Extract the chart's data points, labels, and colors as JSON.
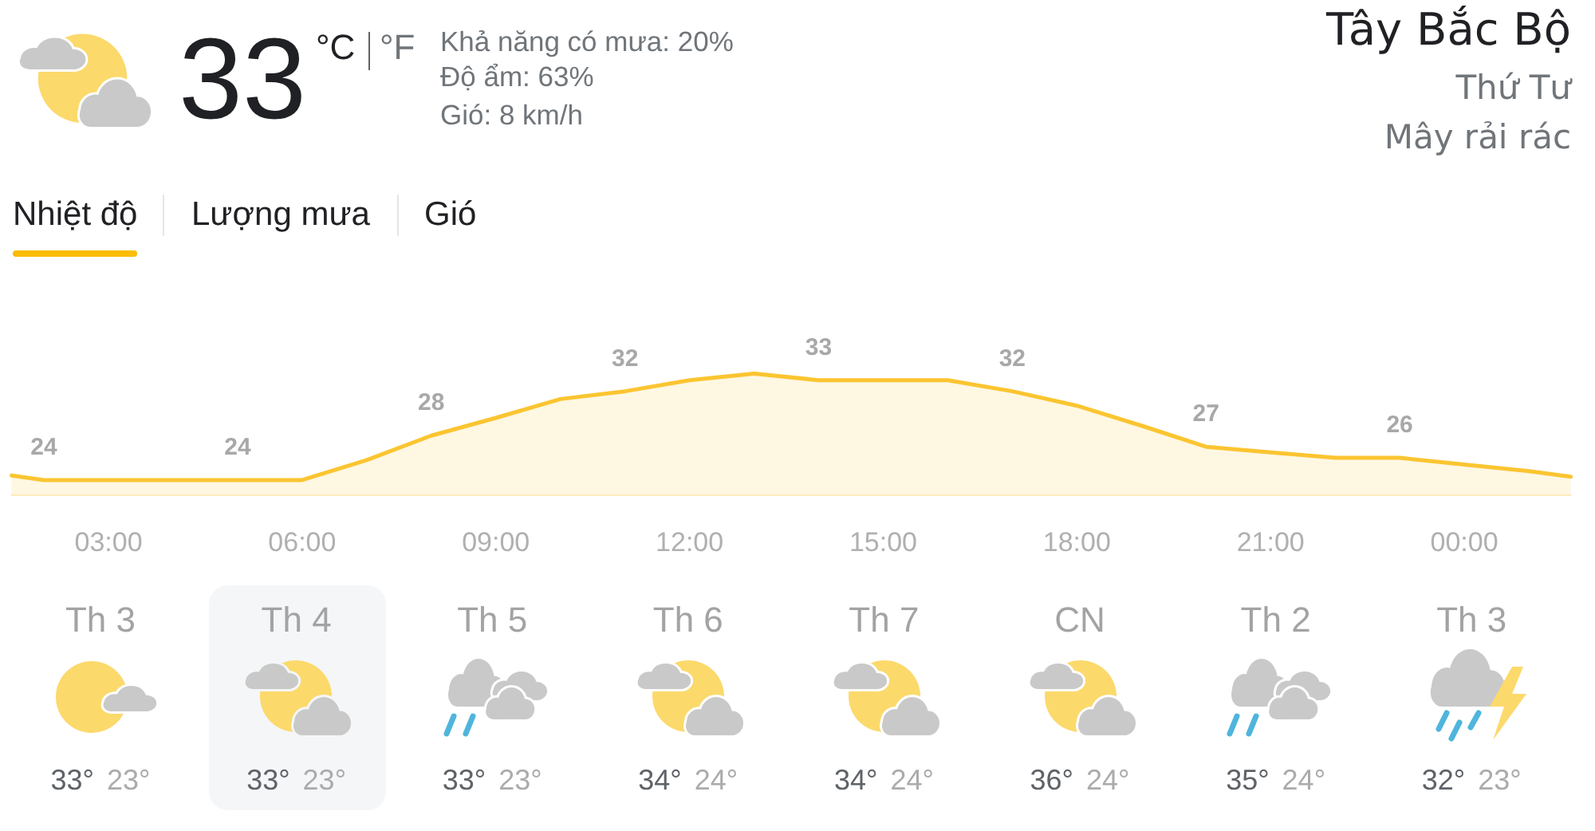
{
  "chart_data": [
    {
      "type": "other",
      "title": "Tây Bắc Bộ",
      "subtitle": "Thứ Tư",
      "annotations": [
        "33",
        "°C",
        "°F",
        "Khả năng có mưa: 20%",
        "Độ ẩm: 63%",
        "Gió: 8 km/h",
        "Mây rải rác",
        "Nhiệt độ",
        "Lượng mưa",
        "Gió"
      ]
    },
    {
      "type": "area",
      "color": "#fbc531",
      "x": [
        1.5,
        2,
        3,
        4,
        5,
        6,
        7,
        8,
        9,
        10,
        11,
        12,
        13,
        14,
        15,
        16,
        17,
        18,
        19,
        20,
        21,
        22,
        23,
        24,
        25,
        25.65
      ],
      "values": [
        24.4,
        24,
        24,
        24,
        24,
        24,
        25.8,
        28,
        29.6,
        31.3,
        32,
        33,
        33.6,
        33,
        33,
        33,
        32,
        30.7,
        28.9,
        27,
        26.5,
        26,
        26,
        25.4,
        24.8,
        24.3
      ],
      "value_labels": [
        null,
        "24",
        null,
        null,
        "24",
        null,
        null,
        "28",
        null,
        null,
        "32",
        null,
        null,
        "33",
        null,
        null,
        "32",
        null,
        null,
        "27",
        null,
        null,
        "26",
        null,
        null,
        null
      ],
      "xlim": [
        1.5,
        25.65
      ],
      "xticks": [
        {
          "value": 3,
          "label": "03:00"
        },
        {
          "value": 6,
          "label": "06:00"
        },
        {
          "value": 9,
          "label": "09:00"
        },
        {
          "value": 12,
          "label": "12:00"
        },
        {
          "value": 15,
          "label": "15:00"
        },
        {
          "value": 18,
          "label": "18:00"
        },
        {
          "value": 21,
          "label": "21:00"
        },
        {
          "value": 24,
          "label": "00:00"
        }
      ],
      "tick_labels": "x"
    },
    {
      "type": "other",
      "categories": [
        "Th 3",
        "Th 4",
        "Th 5",
        "Th 6",
        "Th 7",
        "CN",
        "Th 2",
        "Th 3"
      ],
      "series": [
        {
          "values": [
            33,
            33,
            33,
            34,
            34,
            36,
            35,
            32
          ],
          "value_labels": [
            "33°",
            "33°",
            "33°",
            "34°",
            "34°",
            "36°",
            "35°",
            "32°"
          ]
        },
        {
          "values": [
            23,
            23,
            23,
            24,
            24,
            24,
            24,
            23
          ],
          "value_labels": [
            "23°",
            "23°",
            "23°",
            "24°",
            "24°",
            "24°",
            "24°",
            "23°"
          ]
        }
      ]
    }
  ]
}
